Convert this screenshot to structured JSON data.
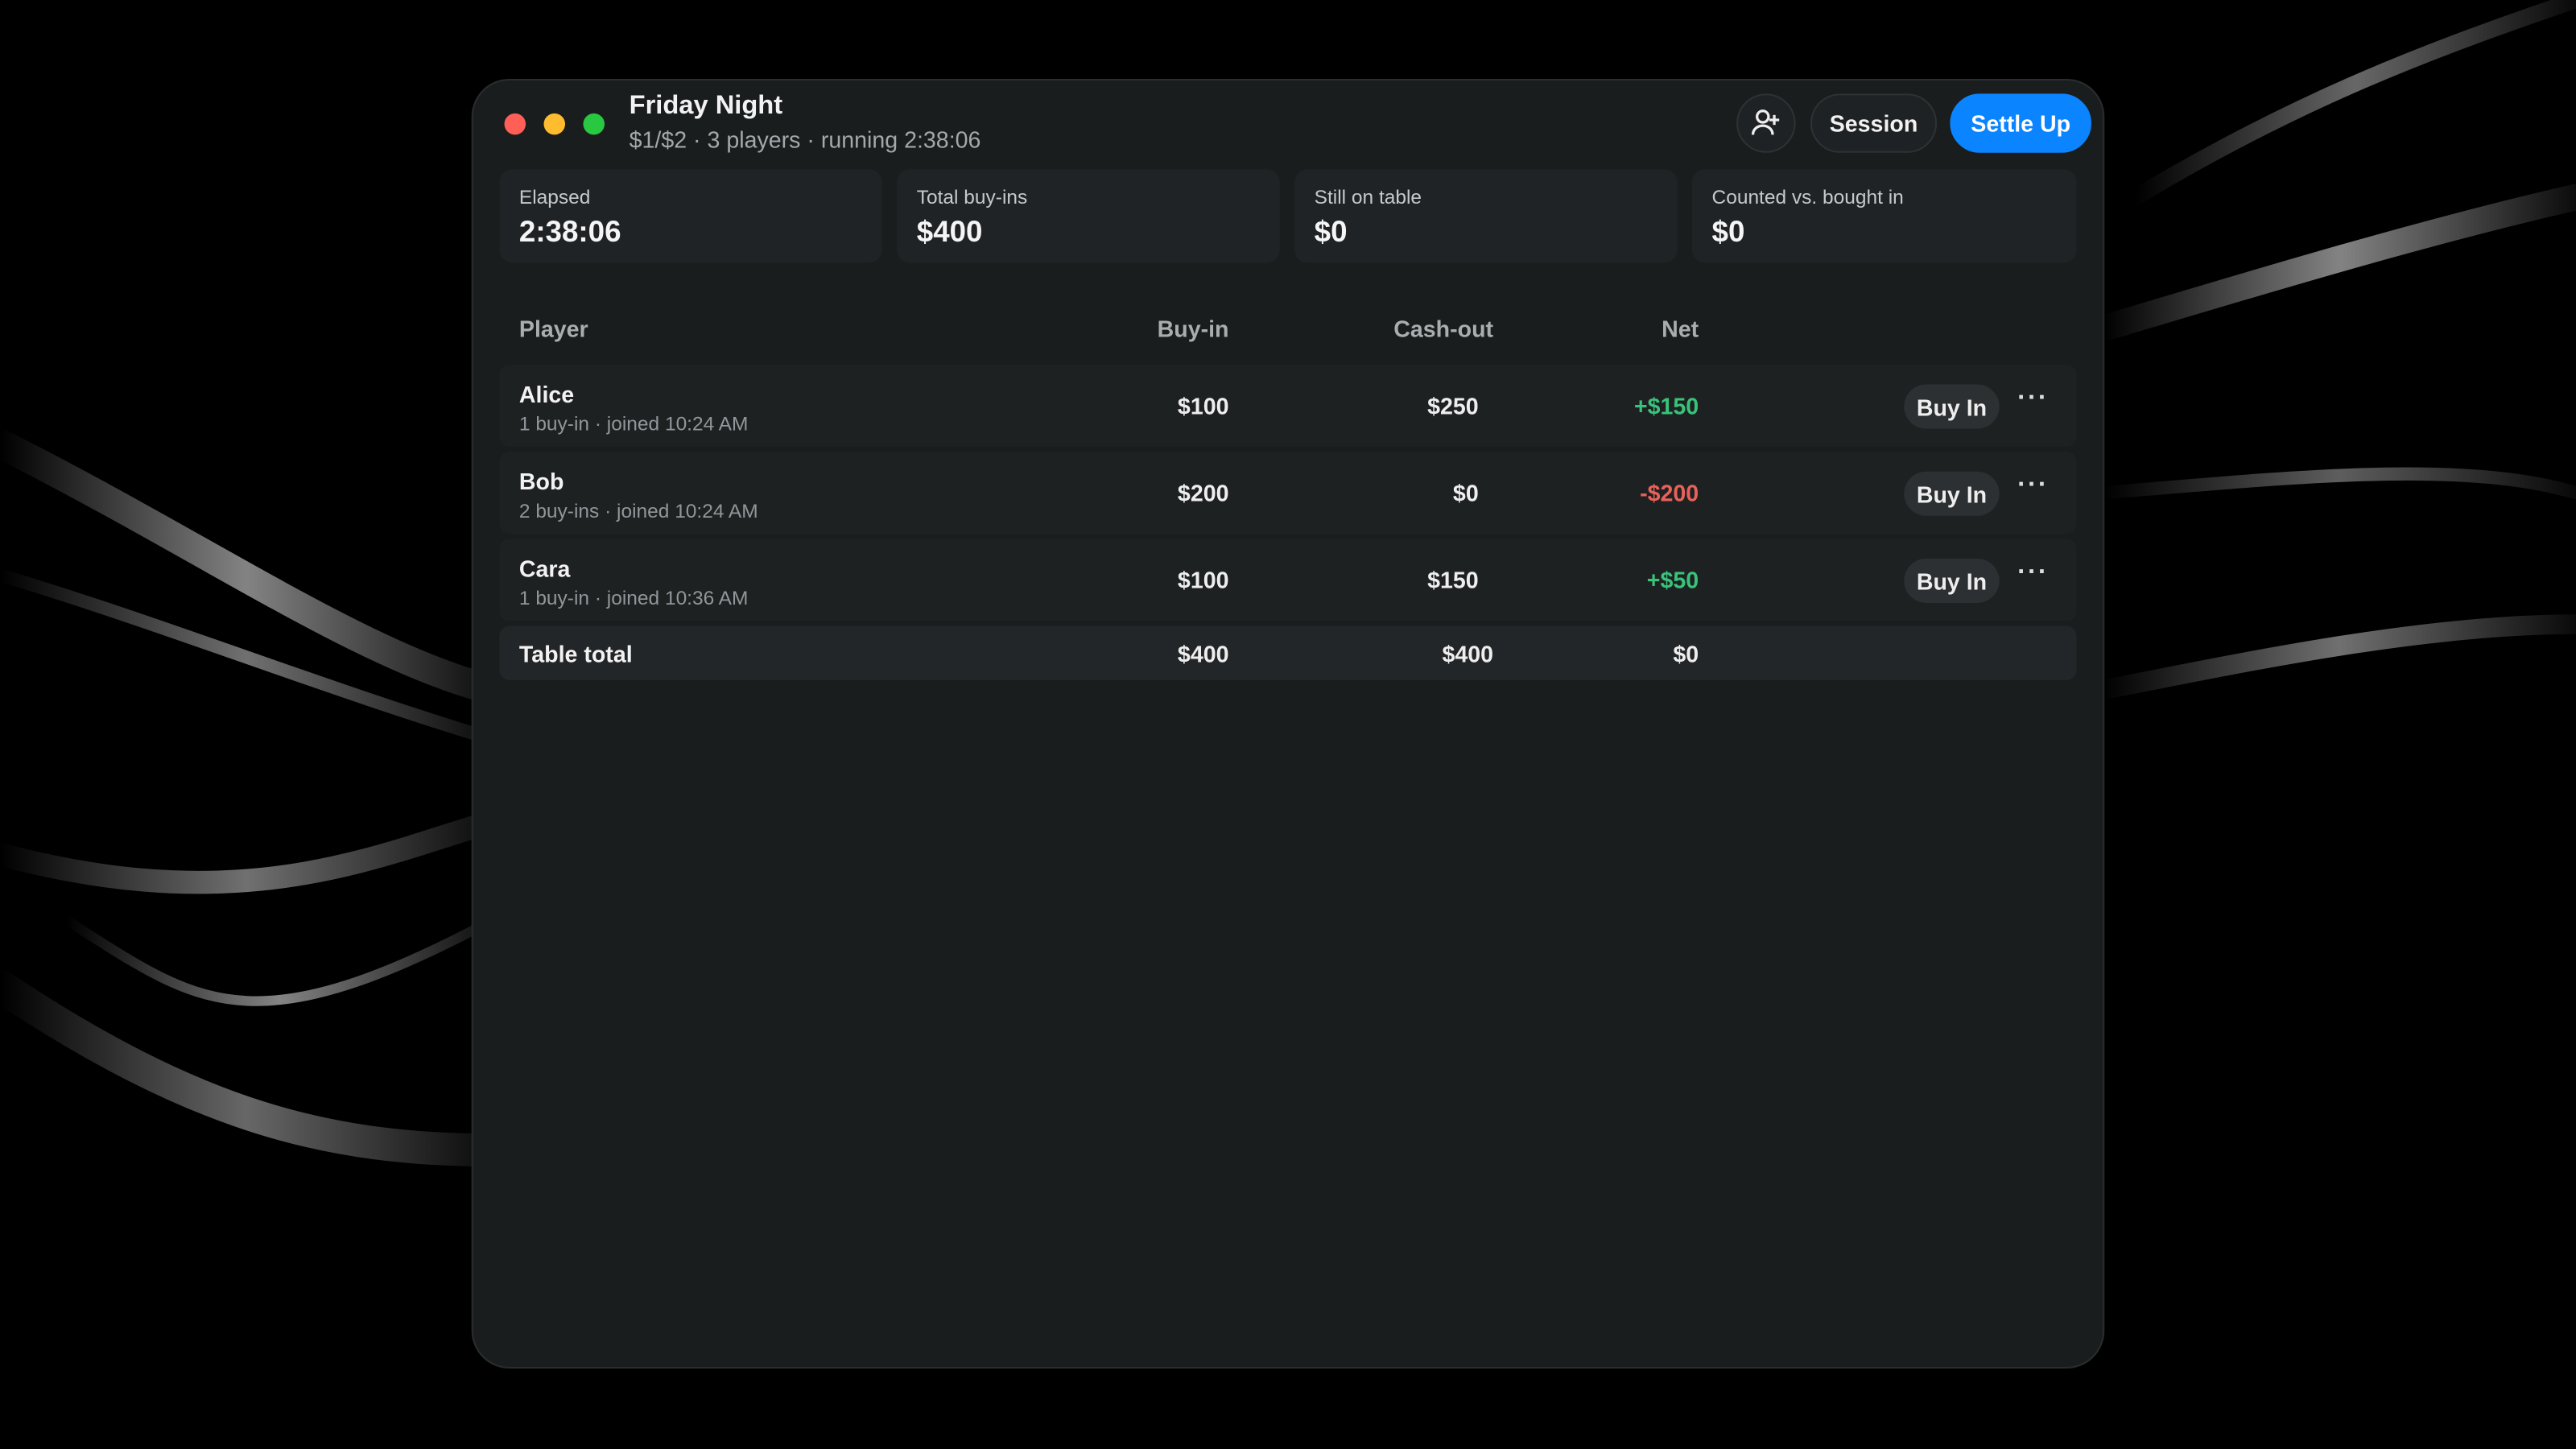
{
  "header": {
    "title": "Friday Night",
    "subtitle": "$1/$2 · 3 players · running 2:38:06",
    "buttons": [
      "Session",
      "Settle Up"
    ]
  },
  "stats": [
    {
      "label": "Elapsed",
      "value": "2:38:06"
    },
    {
      "label": "Total buy-ins",
      "value": "$400"
    },
    {
      "label": "Still on table",
      "value": "$0"
    },
    {
      "label": "Counted vs. bought in",
      "value": "$0"
    }
  ],
  "table": {
    "columns": [
      "Player",
      "Buy-in",
      "Cash-out",
      "Net"
    ],
    "rows": [
      {
        "name": "Alice",
        "detail": "1 buy-in · joined 10:24 AM",
        "buy_in": "$100",
        "cash_out": "$250",
        "net": "+$150",
        "action": "Buy In"
      },
      {
        "name": "Bob",
        "detail": "2 buy-ins · joined 10:24 AM",
        "buy_in": "$200",
        "cash_out": "$0",
        "net": "-$200",
        "action": "Buy In"
      },
      {
        "name": "Cara",
        "detail": "1 buy-in · joined 10:36 AM",
        "buy_in": "$100",
        "cash_out": "$150",
        "net": "+$50",
        "action": "Buy In"
      }
    ],
    "total": {
      "label": "Table total",
      "buy_in": "$400",
      "cash_out": "$400",
      "net": "$0"
    }
  }
}
